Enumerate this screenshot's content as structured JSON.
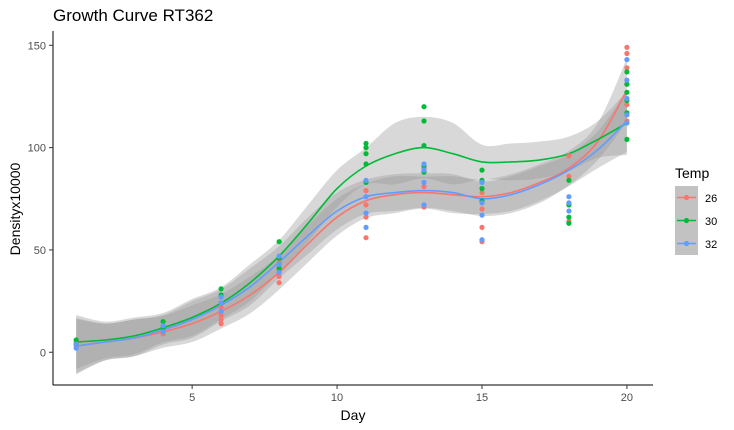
{
  "chart_data": {
    "type": "scatter",
    "title": "Growth Curve RT362",
    "xlabel": "Day",
    "ylabel": "Densityx10000",
    "xlim": [
      0.2,
      20.9
    ],
    "ylim": [
      -16,
      156
    ],
    "x_ticks": [
      5,
      10,
      15,
      20
    ],
    "y_ticks": [
      0,
      50,
      100,
      150
    ],
    "grid": false,
    "legend": {
      "title": "Temp",
      "position": "right"
    },
    "series": [
      {
        "name": "26",
        "color": "#F8766D",
        "points": [
          [
            1,
            3
          ],
          [
            1,
            5
          ],
          [
            1,
            6
          ],
          [
            4,
            9
          ],
          [
            4,
            11
          ],
          [
            4,
            13
          ],
          [
            6,
            14
          ],
          [
            6,
            16
          ],
          [
            6,
            18
          ],
          [
            6,
            22
          ],
          [
            8,
            34
          ],
          [
            8,
            37
          ],
          [
            8,
            41
          ],
          [
            8,
            44
          ],
          [
            11,
            56
          ],
          [
            11,
            66
          ],
          [
            11,
            72
          ],
          [
            11,
            79
          ],
          [
            13,
            71
          ],
          [
            13,
            81
          ],
          [
            13,
            90
          ],
          [
            15,
            54
          ],
          [
            15,
            61
          ],
          [
            15,
            70
          ],
          [
            15,
            78
          ],
          [
            18,
            64
          ],
          [
            18,
            72
          ],
          [
            18,
            86
          ],
          [
            18,
            96
          ],
          [
            20,
            113
          ],
          [
            20,
            121
          ],
          [
            20,
            131
          ],
          [
            20,
            139
          ],
          [
            20,
            146
          ],
          [
            20,
            149
          ]
        ],
        "fit": [
          [
            1,
            3
          ],
          [
            2,
            5
          ],
          [
            3,
            7
          ],
          [
            4,
            10
          ],
          [
            5,
            14
          ],
          [
            6,
            20
          ],
          [
            7,
            28
          ],
          [
            8,
            39
          ],
          [
            9,
            53
          ],
          [
            10,
            66
          ],
          [
            11,
            74
          ],
          [
            12,
            77
          ],
          [
            13,
            78
          ],
          [
            14,
            77
          ],
          [
            15,
            76
          ],
          [
            16,
            78
          ],
          [
            17,
            83
          ],
          [
            18,
            90
          ],
          [
            19,
            103
          ],
          [
            20,
            128
          ]
        ]
      },
      {
        "name": "30",
        "color": "#00BA38",
        "points": [
          [
            1,
            4
          ],
          [
            1,
            6
          ],
          [
            4,
            12
          ],
          [
            4,
            15
          ],
          [
            6,
            24
          ],
          [
            6,
            28
          ],
          [
            6,
            31
          ],
          [
            8,
            41
          ],
          [
            8,
            46
          ],
          [
            8,
            54
          ],
          [
            11,
            83
          ],
          [
            11,
            92
          ],
          [
            11,
            97
          ],
          [
            11,
            100
          ],
          [
            11,
            102
          ],
          [
            13,
            88
          ],
          [
            13,
            91
          ],
          [
            13,
            101
          ],
          [
            13,
            113
          ],
          [
            13,
            120
          ],
          [
            15,
            74
          ],
          [
            15,
            80
          ],
          [
            15,
            84
          ],
          [
            15,
            89
          ],
          [
            18,
            63
          ],
          [
            18,
            66
          ],
          [
            18,
            72
          ],
          [
            18,
            84
          ],
          [
            20,
            104
          ],
          [
            20,
            117
          ],
          [
            20,
            123
          ],
          [
            20,
            127
          ],
          [
            20,
            131
          ],
          [
            20,
            137
          ]
        ],
        "fit": [
          [
            1,
            5
          ],
          [
            2,
            6
          ],
          [
            3,
            8
          ],
          [
            4,
            12
          ],
          [
            5,
            17
          ],
          [
            6,
            24
          ],
          [
            7,
            34
          ],
          [
            8,
            47
          ],
          [
            9,
            63
          ],
          [
            10,
            80
          ],
          [
            11,
            91
          ],
          [
            12,
            97
          ],
          [
            13,
            100
          ],
          [
            14,
            97
          ],
          [
            15,
            93
          ],
          [
            16,
            93
          ],
          [
            17,
            94
          ],
          [
            18,
            97
          ],
          [
            19,
            104
          ],
          [
            20,
            112
          ]
        ]
      },
      {
        "name": "32",
        "color": "#619CFF",
        "points": [
          [
            1,
            2
          ],
          [
            1,
            4
          ],
          [
            4,
            10
          ],
          [
            4,
            13
          ],
          [
            6,
            20
          ],
          [
            6,
            24
          ],
          [
            6,
            27
          ],
          [
            8,
            39
          ],
          [
            8,
            43
          ],
          [
            8,
            47
          ],
          [
            11,
            61
          ],
          [
            11,
            68
          ],
          [
            11,
            76
          ],
          [
            11,
            84
          ],
          [
            13,
            72
          ],
          [
            13,
            83
          ],
          [
            13,
            89
          ],
          [
            13,
            92
          ],
          [
            15,
            55
          ],
          [
            15,
            67
          ],
          [
            15,
            73
          ],
          [
            15,
            83
          ],
          [
            18,
            69
          ],
          [
            18,
            73
          ],
          [
            18,
            76
          ],
          [
            20,
            112
          ],
          [
            20,
            116
          ],
          [
            20,
            124
          ],
          [
            20,
            133
          ],
          [
            20,
            143
          ]
        ],
        "fit": [
          [
            1,
            3
          ],
          [
            2,
            5
          ],
          [
            3,
            7
          ],
          [
            4,
            11
          ],
          [
            5,
            16
          ],
          [
            6,
            23
          ],
          [
            7,
            32
          ],
          [
            8,
            44
          ],
          [
            9,
            57
          ],
          [
            10,
            69
          ],
          [
            11,
            76
          ],
          [
            12,
            78
          ],
          [
            13,
            79
          ],
          [
            14,
            78
          ],
          [
            15,
            75
          ],
          [
            16,
            77
          ],
          [
            17,
            82
          ],
          [
            18,
            89
          ],
          [
            19,
            99
          ],
          [
            20,
            113
          ]
        ]
      }
    ]
  }
}
